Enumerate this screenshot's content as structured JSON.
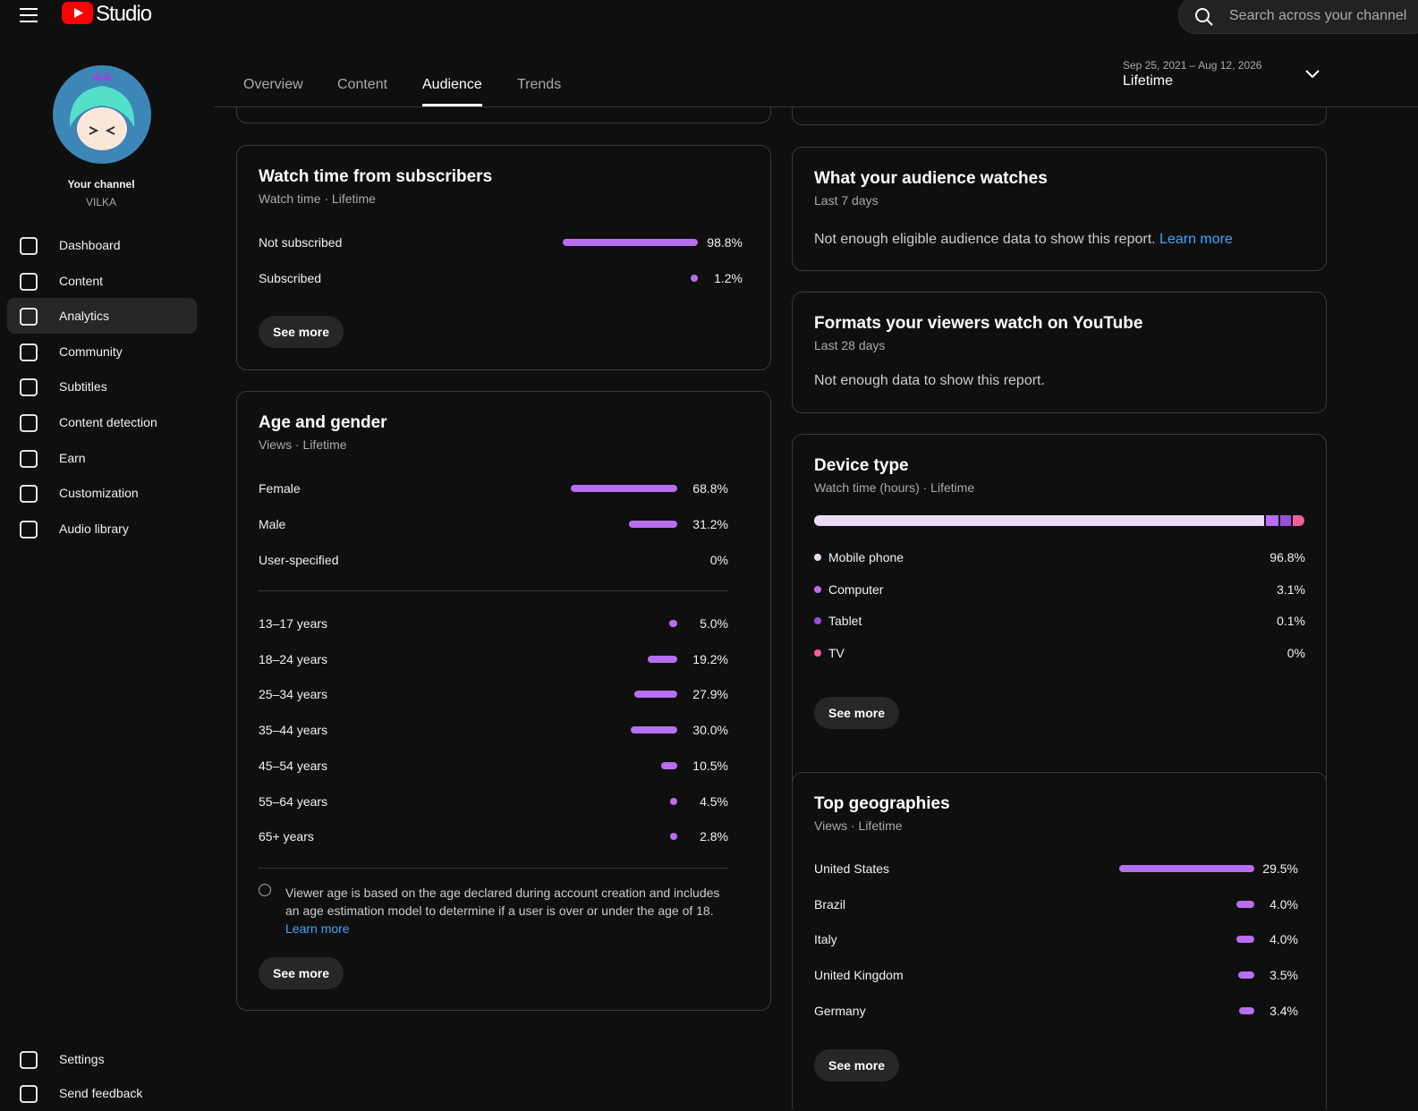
{
  "header": {
    "logo_text": "Studio",
    "search_placeholder": "Search across your channel"
  },
  "channel": {
    "label": "Your channel",
    "name": "VILKA"
  },
  "nav": [
    "Dashboard",
    "Content",
    "Analytics",
    "Community",
    "Subtitles",
    "Content detection",
    "Earn",
    "Customization",
    "Audio library"
  ],
  "nav_bottom": [
    "Settings",
    "Send feedback"
  ],
  "tabs": [
    "Overview",
    "Content",
    "Audience",
    "Trends"
  ],
  "date_range": {
    "dates": "Sep 25, 2021 – Aug 12, 2026",
    "period": "Lifetime"
  },
  "subscribers": {
    "title": "Watch time from subscribers",
    "subtitle": "Watch time · Lifetime",
    "rows": [
      {
        "label": "Not subscribed",
        "value": 98.8,
        "value_label": "98.8%"
      },
      {
        "label": "Subscribed",
        "value": 1.2,
        "value_label": "1.2%"
      }
    ],
    "button": "See more"
  },
  "age_gender": {
    "title": "Age and gender",
    "subtitle": "Views · Lifetime",
    "gender": [
      {
        "label": "Female",
        "value": 68.8,
        "value_label": "68.8%"
      },
      {
        "label": "Male",
        "value": 31.2,
        "value_label": "31.2%"
      },
      {
        "label": "User-specified",
        "value": 0,
        "value_label": "0%"
      }
    ],
    "ages": [
      {
        "label": "13–17 years",
        "value": 5.0,
        "value_label": "5.0%"
      },
      {
        "label": "18–24 years",
        "value": 19.2,
        "value_label": "19.2%"
      },
      {
        "label": "25–34 years",
        "value": 27.9,
        "value_label": "27.9%"
      },
      {
        "label": "35–44 years",
        "value": 30.0,
        "value_label": "30.0%"
      },
      {
        "label": "45–54 years",
        "value": 10.5,
        "value_label": "10.5%"
      },
      {
        "label": "55–64 years",
        "value": 4.5,
        "value_label": "4.5%"
      },
      {
        "label": "65+ years",
        "value": 2.8,
        "value_label": "2.8%"
      }
    ],
    "note": "Viewer age is based on the age declared during account creation and includes an age estimation model to determine if a user is over or under the age of 18.",
    "note_link": "Learn more",
    "button": "See more"
  },
  "audience_watches": {
    "title": "What your audience watches",
    "subtitle": "Last 7 days",
    "message": "Not enough eligible audience data to show this report.",
    "link": "Learn more"
  },
  "formats": {
    "title": "Formats your viewers watch on YouTube",
    "subtitle": "Last 28 days",
    "message": "Not enough data to show this report."
  },
  "device_type": {
    "title": "Device type",
    "subtitle": "Watch time (hours) · Lifetime",
    "rows": [
      {
        "label": "Mobile phone",
        "value": 96.8,
        "value_label": "96.8%",
        "color": "#eadcf7"
      },
      {
        "label": "Computer",
        "value": 3.1,
        "value_label": "3.1%",
        "color": "#b86ef0"
      },
      {
        "label": "Tablet",
        "value": 0.1,
        "value_label": "0.1%",
        "color": "#9552d6"
      },
      {
        "label": "TV",
        "value": 0,
        "value_label": "0%",
        "color": "#f0609a"
      }
    ],
    "button": "See more"
  },
  "top_geographies": {
    "title": "Top geographies",
    "subtitle": "Views · Lifetime",
    "rows": [
      {
        "label": "United States",
        "value": 29.5,
        "value_label": "29.5%"
      },
      {
        "label": "Brazil",
        "value": 4.0,
        "value_label": "4.0%"
      },
      {
        "label": "Italy",
        "value": 4.0,
        "value_label": "4.0%"
      },
      {
        "label": "United Kingdom",
        "value": 3.5,
        "value_label": "3.5%"
      },
      {
        "label": "Germany",
        "value": 3.4,
        "value_label": "3.4%"
      }
    ],
    "button": "See more"
  }
}
